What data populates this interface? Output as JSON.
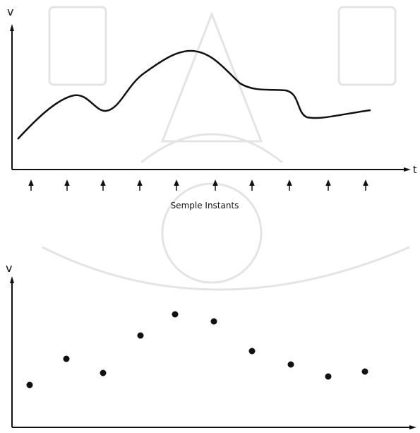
{
  "top_plot": {
    "y_axis_label": "v",
    "x_axis_label": "t",
    "caption": "Semple Instants"
  },
  "bottom_plot": {
    "y_axis_label": "v"
  }
}
